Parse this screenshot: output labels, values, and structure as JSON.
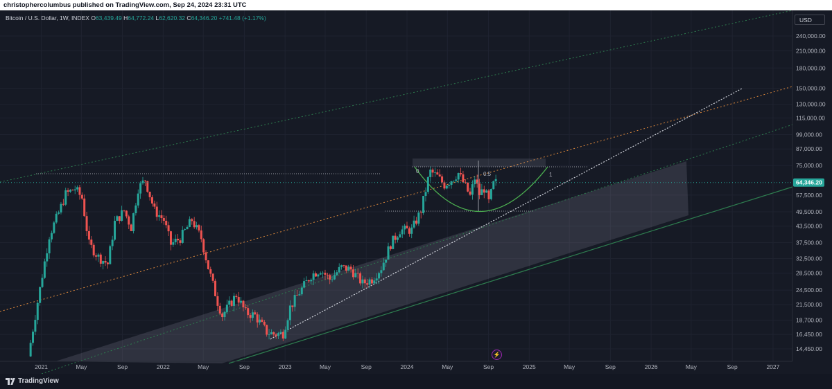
{
  "header": {
    "published": "christophercolumbus published on TradingView.com, Sep 24, 2024 23:31 UTC"
  },
  "legend": {
    "symbol": "Bitcoin / U.S. Dollar, 1W, INDEX",
    "o_label": "O",
    "o_value": "63,439.49",
    "h_label": "H",
    "h_value": "64,772.24",
    "l_label": "L",
    "l_value": "62,620.32",
    "c_label": "C",
    "c_value": "64,346.20",
    "change": "+741.48 (+1.17%)"
  },
  "currency_button": "USD",
  "brand": "TradingView",
  "colors": {
    "background": "#161a25",
    "up": "#26a69a",
    "down": "#ef5350",
    "price_label_bg": "#26a69a",
    "channel_green": "#2e7d4f",
    "channel_orange": "#e08a3c",
    "trend_white": "#d1d4dc",
    "cup_green": "#4caf50"
  },
  "chart_data": {
    "type": "candlestick",
    "title": "Bitcoin / U.S. Dollar, 1W, INDEX",
    "y_scale": "log",
    "ylim": [
      13500,
      270000
    ],
    "x_ticks": [
      "2021",
      "May",
      "Sep",
      "2022",
      "May",
      "Sep",
      "2023",
      "May",
      "Sep",
      "2024",
      "May",
      "Sep",
      "2025",
      "May",
      "Sep",
      "2026",
      "May",
      "Sep",
      "2027"
    ],
    "y_ticks": [
      "240,000.00",
      "210,000.00",
      "180,000.00",
      "150,000.00",
      "130,000.00",
      "115,000.00",
      "99,000.00",
      "87,000.00",
      "75,000.00",
      "57,500.00",
      "49,500.00",
      "43,500.00",
      "37,500.00",
      "32,500.00",
      "28,500.00",
      "24,500.00",
      "21,500.00",
      "18,700.00",
      "16,450.00",
      "14,450.00"
    ],
    "y_tick_values": [
      240000,
      210000,
      180000,
      150000,
      130000,
      115000,
      99000,
      87000,
      75000,
      57500,
      49500,
      43500,
      37500,
      32500,
      28500,
      24500,
      21500,
      18700,
      16450,
      14450
    ],
    "last_price": 64346.2,
    "last_price_label": "64,346.20",
    "price_path": [
      [
        "2020-11-23",
        13500
      ],
      [
        "2020-12-14",
        19500
      ],
      [
        "2021-01-04",
        28000
      ],
      [
        "2021-01-25",
        40000
      ],
      [
        "2021-02-22",
        49000
      ],
      [
        "2021-03-15",
        58000
      ],
      [
        "2021-04-12",
        61000
      ],
      [
        "2021-05-03",
        56000
      ],
      [
        "2021-05-24",
        37000
      ],
      [
        "2021-06-21",
        33000
      ],
      [
        "2021-07-19",
        31000
      ],
      [
        "2021-08-09",
        45000
      ],
      [
        "2021-09-06",
        50000
      ],
      [
        "2021-09-27",
        43000
      ],
      [
        "2021-10-18",
        61000
      ],
      [
        "2021-11-08",
        66000
      ],
      [
        "2021-12-06",
        50000
      ],
      [
        "2022-01-03",
        46000
      ],
      [
        "2022-01-24",
        37000
      ],
      [
        "2022-02-21",
        39000
      ],
      [
        "2022-03-28",
        46000
      ],
      [
        "2022-04-25",
        39000
      ],
      [
        "2022-05-16",
        30000
      ],
      [
        "2022-06-13",
        22000
      ],
      [
        "2022-06-27",
        19500
      ],
      [
        "2022-08-08",
        23500
      ],
      [
        "2022-09-05",
        20000
      ],
      [
        "2022-10-03",
        19500
      ],
      [
        "2022-11-07",
        16800
      ],
      [
        "2022-11-28",
        16500
      ],
      [
        "2022-12-26",
        16600
      ],
      [
        "2023-01-16",
        21000
      ],
      [
        "2023-02-13",
        24000
      ],
      [
        "2023-03-20",
        28000
      ],
      [
        "2023-04-17",
        29500
      ],
      [
        "2023-05-15",
        27000
      ],
      [
        "2023-06-19",
        30000
      ],
      [
        "2023-07-17",
        29500
      ],
      [
        "2023-08-21",
        26000
      ],
      [
        "2023-09-18",
        27000
      ],
      [
        "2023-10-16",
        30000
      ],
      [
        "2023-11-13",
        37000
      ],
      [
        "2023-12-11",
        42000
      ],
      [
        "2024-01-15",
        42000
      ],
      [
        "2024-02-12",
        50000
      ],
      [
        "2024-03-04",
        66000
      ],
      [
        "2024-03-11",
        71000
      ],
      [
        "2024-04-01",
        68000
      ],
      [
        "2024-04-22",
        63000
      ],
      [
        "2024-05-13",
        66000
      ],
      [
        "2024-06-03",
        70000
      ],
      [
        "2024-06-24",
        62000
      ],
      [
        "2024-07-08",
        57000
      ],
      [
        "2024-07-22",
        67000
      ],
      [
        "2024-08-05",
        58000
      ],
      [
        "2024-08-19",
        61000
      ],
      [
        "2024-09-02",
        54000
      ],
      [
        "2024-09-16",
        63400
      ],
      [
        "2024-09-23",
        64346
      ]
    ],
    "annotations": {
      "fib_labels": [
        "0",
        "0.5",
        "1"
      ]
    }
  }
}
